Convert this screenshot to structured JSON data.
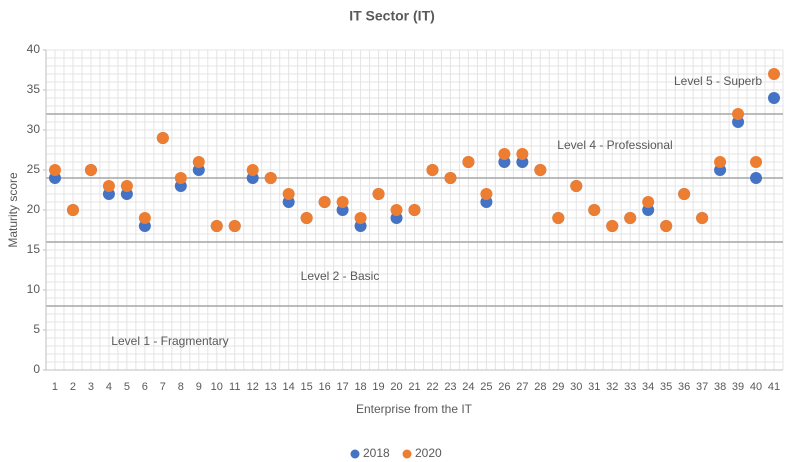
{
  "chart_data": {
    "type": "scatter",
    "title": "IT Sector (IT)",
    "x_label": "Enterprise from the IT",
    "y_label": "Maturity score",
    "categories": [
      "1",
      "2",
      "3",
      "4",
      "5",
      "6",
      "7",
      "8",
      "9",
      "10",
      "11",
      "12",
      "13",
      "14",
      "15",
      "16",
      "17",
      "18",
      "19",
      "20",
      "21",
      "22",
      "23",
      "24",
      "25",
      "26",
      "27",
      "28",
      "29",
      "30",
      "31",
      "32",
      "33",
      "34",
      "35",
      "36",
      "37",
      "38",
      "39",
      "40",
      "41"
    ],
    "series": [
      {
        "name": "2018",
        "color": "#4472c4",
        "values": [
          24,
          20,
          25,
          22,
          22,
          18,
          29,
          23,
          25,
          18,
          18,
          24,
          24,
          21,
          19,
          21,
          20,
          18,
          22,
          19,
          20,
          25,
          24,
          26,
          21,
          26,
          26,
          25,
          19,
          23,
          20,
          18,
          19,
          20,
          18,
          22,
          19,
          25,
          31,
          24,
          34
        ]
      },
      {
        "name": "2020",
        "color": "#ed7d31",
        "values": [
          25,
          20,
          25,
          23,
          23,
          19,
          29,
          24,
          26,
          18,
          18,
          25,
          24,
          22,
          19,
          21,
          21,
          19,
          22,
          20,
          20,
          25,
          24,
          26,
          22,
          27,
          27,
          25,
          19,
          23,
          20,
          18,
          19,
          21,
          18,
          22,
          19,
          26,
          32,
          26,
          37
        ]
      }
    ],
    "ylim": [
      0,
      40
    ],
    "yticks": [
      0,
      5,
      10,
      15,
      20,
      25,
      30,
      35,
      40
    ],
    "level_lines": [
      8,
      16,
      24,
      32
    ],
    "annotations": [
      "Level 1 - Fragmentary",
      "Level 2 - Basic",
      "Level 4 - Professional",
      "Level 5 - Superb"
    ],
    "grid": true,
    "legend": "bottom"
  }
}
